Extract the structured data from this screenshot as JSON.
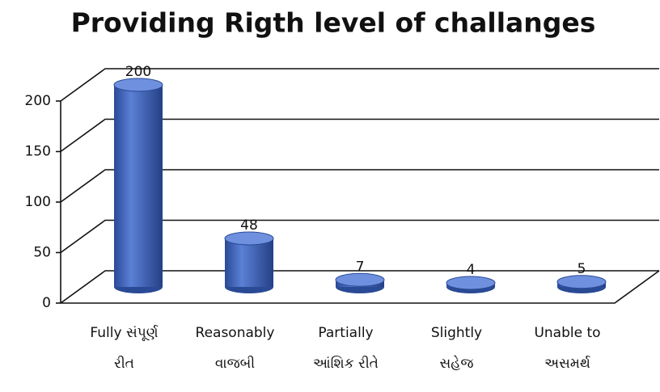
{
  "chart_data": {
    "type": "bar3d",
    "title": "Providing Rigth level of challanges",
    "categories": [
      [
        "Fully સંપૂર્ણ",
        "રીત"
      ],
      [
        "Reasonably",
        "વાજબી"
      ],
      [
        "Partially",
        "આંશિક રીતે"
      ],
      [
        "Slightly",
        "સહેજ"
      ],
      [
        "Unable to",
        "અસમર્થ"
      ]
    ],
    "values": [
      200,
      48,
      7,
      4,
      5
    ],
    "color": "#3f63b8",
    "ylim": [
      0,
      200
    ],
    "yticks": [
      0,
      50,
      100,
      150,
      200
    ],
    "grid": true
  }
}
